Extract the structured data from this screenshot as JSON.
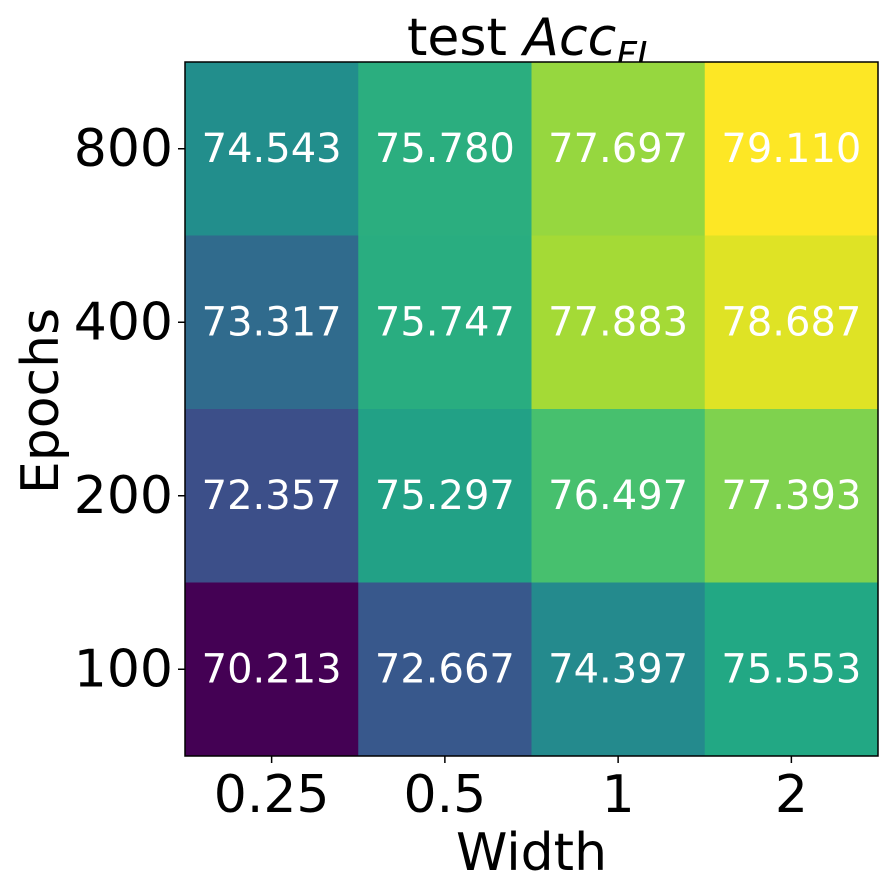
{
  "chart_data": {
    "type": "heatmap",
    "title": {
      "prefix": "test ",
      "math_main": "Acc",
      "math_sub": "FL"
    },
    "xlabel": "Width",
    "ylabel": "Epochs",
    "x_categories": [
      "0.25",
      "0.5",
      "1",
      "2"
    ],
    "y_categories": [
      "800",
      "400",
      "200",
      "100"
    ],
    "values": [
      [
        74.543,
        75.78,
        77.697,
        79.11
      ],
      [
        73.317,
        75.747,
        77.883,
        78.687
      ],
      [
        72.357,
        75.297,
        76.497,
        77.393
      ],
      [
        70.213,
        72.667,
        74.397,
        75.553
      ]
    ],
    "value_labels": [
      [
        "74.543",
        "75.780",
        "77.697",
        "79.110"
      ],
      [
        "73.317",
        "75.747",
        "77.883",
        "78.687"
      ],
      [
        "72.357",
        "75.297",
        "76.497",
        "77.393"
      ],
      [
        "70.213",
        "72.667",
        "74.397",
        "75.553"
      ]
    ],
    "colormap": "viridis",
    "color_range": [
      70.213,
      79.11
    ],
    "colorbar": false,
    "grid": false
  }
}
